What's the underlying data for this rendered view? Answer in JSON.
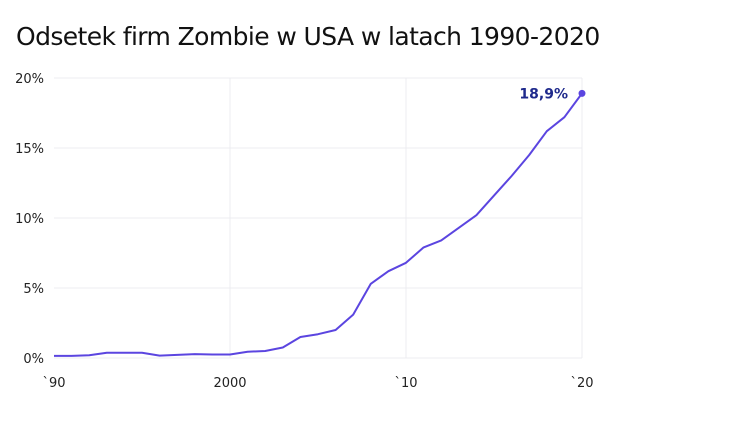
{
  "chart_data": {
    "type": "line",
    "title": "Odsetek firm Zombie w USA w latach 1990-2020",
    "xlabel": "",
    "ylabel": "",
    "xlim": [
      1990,
      2020
    ],
    "ylim": [
      0,
      20
    ],
    "x_ticks": [
      {
        "value": 1990,
        "label": "`90"
      },
      {
        "value": 2000,
        "label": "2000"
      },
      {
        "value": 2010,
        "label": "`10"
      },
      {
        "value": 2020,
        "label": "`20"
      }
    ],
    "y_ticks": [
      {
        "value": 0,
        "label": "0%"
      },
      {
        "value": 5,
        "label": "5%"
      },
      {
        "value": 10,
        "label": "10%"
      },
      {
        "value": 15,
        "label": "15%"
      },
      {
        "value": 20,
        "label": "20%"
      }
    ],
    "grid": true,
    "line_color": "#5b45e0",
    "label_color": "#1f2a8c",
    "x": [
      1990,
      1991,
      1992,
      1993,
      1994,
      1995,
      1996,
      1997,
      1998,
      1999,
      2000,
      2001,
      2002,
      2003,
      2004,
      2005,
      2006,
      2007,
      2008,
      2009,
      2010,
      2011,
      2012,
      2013,
      2014,
      2015,
      2016,
      2017,
      2018,
      2019,
      2020
    ],
    "values": [
      0.15,
      0.15,
      0.2,
      0.37,
      0.37,
      0.37,
      0.17,
      0.22,
      0.28,
      0.25,
      0.25,
      0.45,
      0.5,
      0.75,
      1.5,
      1.7,
      2.0,
      3.1,
      5.3,
      6.2,
      6.8,
      7.9,
      8.4,
      9.3,
      10.2,
      11.6,
      13.0,
      14.5,
      16.2,
      17.2,
      18.9
    ],
    "annotation": {
      "x": 2020,
      "y": 18.9,
      "text": "18,9%"
    }
  }
}
